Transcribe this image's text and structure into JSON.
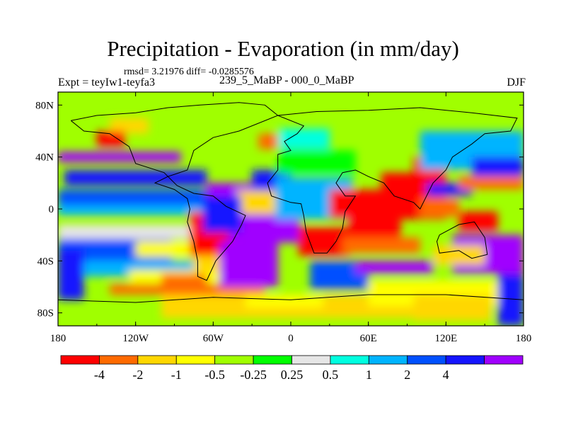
{
  "chart_data": {
    "type": "heatmap",
    "title": "Precipitation - Evaporation (in mm/day)",
    "stats_text": "rmsd= 3.21976 diff= -0.0285576",
    "left_label": "Expt = teyIw1-teyfa3",
    "center_label": "239_5_MaBP - 000_0_MaBP",
    "right_label": "DJF",
    "x_ticks": [
      "180",
      "120W",
      "60W",
      "0",
      "60E",
      "120E",
      "180"
    ],
    "y_ticks": [
      "80N",
      "40N",
      "0",
      "40S",
      "80S"
    ],
    "xlim": [
      -180,
      180
    ],
    "ylim": [
      -90,
      90
    ],
    "colorbar": {
      "levels": [
        "-4",
        "-2",
        "-1",
        "-0.5",
        "-0.25",
        "0.25",
        "0.5",
        "1",
        "2",
        "4"
      ],
      "colors": [
        "#ff0000",
        "#ff6a00",
        "#ffd700",
        "#ffff00",
        "#a0ff00",
        "#00ff00",
        "#e6e6e6",
        "#00ffe0",
        "#00b4ff",
        "#0050ff",
        "#1414ff",
        "#a000ff"
      ]
    }
  }
}
